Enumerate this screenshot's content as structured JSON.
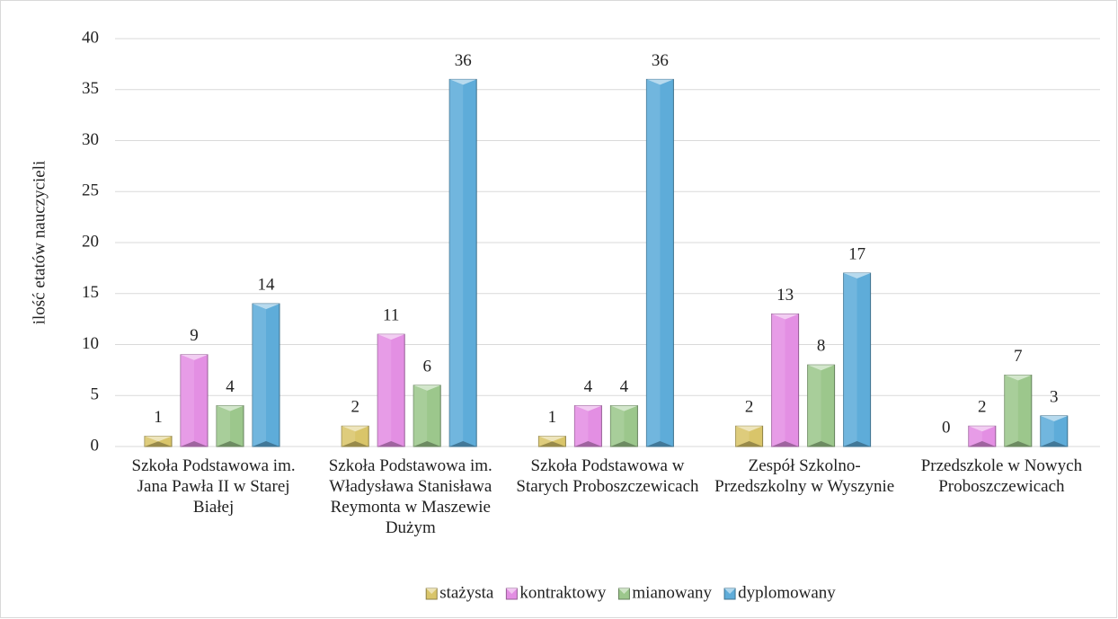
{
  "chart_data": {
    "type": "bar",
    "y_label": "ilość etatów nauczycieli",
    "categories": [
      "Szkoła Podstawowa im. Jana Pawła II w Starej Białej",
      "Szkoła Podstawowa im. Władysława Stanisława Reymonta w Maszewie Dużym",
      "Szkoła Podstawowa w Starych Proboszczewicach",
      "Zespół Szkolno-Przedszkolny w Wyszynie",
      "Przedszkole w Nowych Proboszczewicach"
    ],
    "series": [
      {
        "name": "stażysta",
        "color": "#d9c56a",
        "values": [
          1,
          2,
          1,
          2,
          0
        ]
      },
      {
        "name": "kontraktowy",
        "color": "#e38fe3",
        "values": [
          9,
          11,
          4,
          13,
          2
        ]
      },
      {
        "name": "mianowany",
        "color": "#9cc78c",
        "values": [
          4,
          6,
          4,
          8,
          7
        ]
      },
      {
        "name": "dyplomowany",
        "color": "#5eacd9",
        "values": [
          14,
          36,
          36,
          17,
          3
        ]
      }
    ],
    "ylim": [
      0,
      40
    ],
    "yticks": [
      0,
      5,
      10,
      15,
      20,
      25,
      30,
      35,
      40
    ],
    "grid": true,
    "legend": "bottom"
  }
}
